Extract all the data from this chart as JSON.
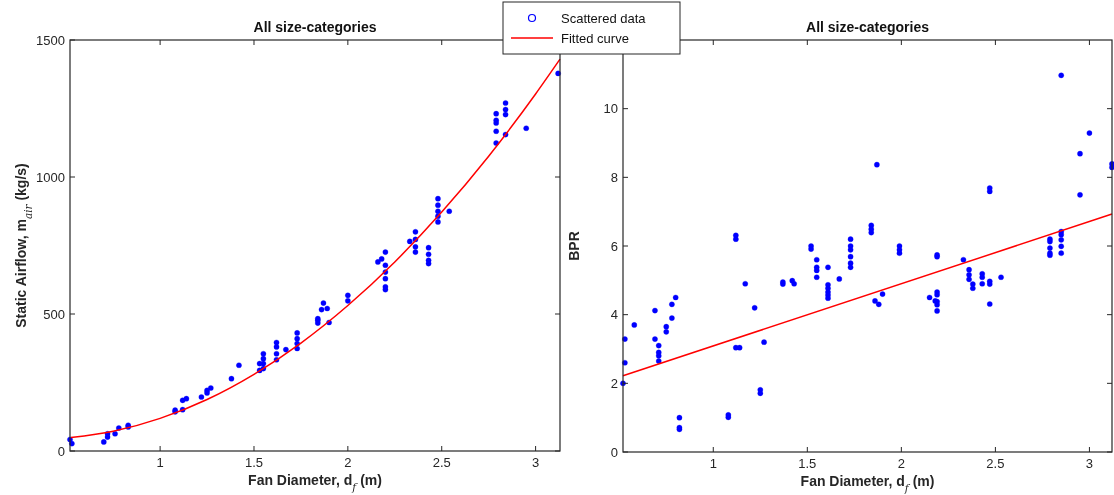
{
  "chart_data": [
    {
      "type": "scatter",
      "title": "All size-categories",
      "xlabel": "Fan Diameter, d$_{f}$ (m)",
      "ylabel": "Static Airflow, m$_{air}$ (kg/s)",
      "xlim": [
        0.52,
        3.13
      ],
      "xticks": [
        1,
        1.5,
        2,
        2.5,
        3
      ],
      "ylim": [
        0,
        1500
      ],
      "yticks": [
        0,
        500,
        1000,
        1500
      ],
      "grid": false,
      "legend": "top right",
      "marker": "circle",
      "series": [
        {
          "name": "Scattered data",
          "color": "#0000ff",
          "x": [
            0.52,
            0.53,
            0.7,
            0.72,
            0.72,
            0.76,
            0.78,
            0.83,
            0.83,
            1.08,
            1.08,
            1.12,
            1.12,
            1.14,
            1.22,
            1.25,
            1.25,
            1.27,
            1.38,
            1.42,
            1.53,
            1.53,
            1.55,
            1.55,
            1.55,
            1.55,
            1.62,
            1.62,
            1.62,
            1.62,
            1.67,
            1.73,
            1.73,
            1.73,
            1.73,
            1.84,
            1.84,
            1.84,
            1.86,
            1.87,
            1.89,
            1.9,
            2.0,
            2.0,
            2.16,
            2.18,
            2.2,
            2.2,
            2.2,
            2.2,
            2.2,
            2.2,
            2.33,
            2.36,
            2.36,
            2.36,
            2.36,
            2.43,
            2.43,
            2.43,
            2.43,
            2.48,
            2.48,
            2.48,
            2.48,
            2.48,
            2.54,
            2.79,
            2.79,
            2.79,
            2.79,
            2.79,
            2.84,
            2.84,
            2.84,
            2.84,
            2.95,
            3.12
          ],
          "values": [
            42,
            27,
            33,
            51,
            63,
            63,
            84,
            94,
            88,
            149,
            143,
            151,
            185,
            191,
            197,
            221,
            212,
            230,
            264,
            313,
            294,
            319,
            301,
            319,
            337,
            355,
            333,
            355,
            380,
            396,
            370,
            374,
            392,
            410,
            431,
            477,
            467,
            483,
            516,
            540,
            520,
            469,
            568,
            548,
            690,
            701,
            726,
            678,
            653,
            629,
            599,
            589,
            765,
            800,
            772,
            745,
            726,
            742,
            718,
            696,
            684,
            921,
            897,
            875,
            857,
            836,
            875,
            1231,
            1207,
            1197,
            1167,
            1124,
            1270,
            1246,
            1228,
            1155,
            1178,
            1378
          ]
        },
        {
          "name": "Fitted curve",
          "type": "line",
          "color": "#ff0000",
          "marker": "none",
          "line_style": "solid",
          "x": [
            0.525,
            0.75,
            1.0,
            1.25,
            1.5,
            1.75,
            2.0,
            2.25,
            2.5,
            2.75,
            3.0,
            3.13
          ],
          "values": [
            49,
            72,
            119,
            188,
            280,
            394,
            531,
            690,
            872,
            1076,
            1303,
            1430
          ]
        }
      ]
    },
    {
      "type": "scatter",
      "title": "All size-categories",
      "xlabel": "Fan Diameter, d$_{f}$ (m)",
      "ylabel": "BPR",
      "xlim": [
        0.52,
        3.12
      ],
      "xticks": [
        1,
        1.5,
        2,
        2.5,
        3
      ],
      "ylim": [
        0,
        12
      ],
      "yticks": [
        0,
        2,
        4,
        6,
        8,
        10
      ],
      "grid": false,
      "legend": false,
      "marker": "circle",
      "series": [
        {
          "color": "#0000ff",
          "x": [
            0.52,
            0.53,
            0.53,
            0.58,
            0.69,
            0.69,
            0.71,
            0.71,
            0.71,
            0.71,
            0.75,
            0.75,
            0.78,
            0.78,
            0.8,
            0.82,
            0.82,
            0.82,
            1.08,
            1.08,
            1.12,
            1.12,
            1.12,
            1.14,
            1.17,
            1.22,
            1.25,
            1.25,
            1.27,
            1.37,
            1.37,
            1.42,
            1.43,
            1.52,
            1.52,
            1.55,
            1.55,
            1.55,
            1.55,
            1.61,
            1.61,
            1.61,
            1.61,
            1.61,
            1.61,
            1.67,
            1.73,
            1.73,
            1.73,
            1.73,
            1.73,
            1.73,
            1.84,
            1.84,
            1.84,
            1.87,
            1.86,
            1.88,
            1.9,
            1.99,
            1.99,
            1.99,
            2.15,
            2.18,
            2.19,
            2.19,
            2.19,
            2.19,
            2.19,
            2.19,
            2.19,
            2.33,
            2.36,
            2.36,
            2.36,
            2.38,
            2.38,
            2.43,
            2.43,
            2.43,
            2.47,
            2.47,
            2.47,
            2.47,
            2.47,
            2.53,
            2.79,
            2.79,
            2.79,
            2.79,
            2.79,
            2.85,
            2.85,
            2.85,
            2.85,
            2.85,
            2.85,
            2.95,
            2.95,
            3.0,
            3.12,
            3.12
          ],
          "values": [
            2.0,
            2.6,
            3.29,
            3.7,
            4.12,
            3.29,
            3.1,
            2.9,
            2.8,
            2.65,
            3.65,
            3.5,
            3.9,
            4.3,
            4.5,
            1.0,
            0.71,
            0.66,
            1.08,
            1.01,
            6.31,
            6.2,
            3.04,
            3.04,
            4.9,
            4.2,
            1.81,
            1.71,
            3.2,
            4.95,
            4.89,
            4.99,
            4.9,
            6.0,
            5.91,
            5.6,
            5.38,
            5.29,
            5.09,
            5.38,
            4.87,
            4.77,
            4.66,
            4.57,
            4.48,
            5.04,
            6.2,
            6.0,
            5.89,
            5.69,
            5.5,
            5.38,
            6.6,
            6.49,
            6.39,
            8.37,
            4.4,
            4.3,
            4.6,
            6.0,
            5.89,
            5.79,
            4.5,
            4.4,
            5.74,
            5.69,
            4.66,
            4.58,
            4.38,
            4.29,
            4.11,
            5.6,
            5.31,
            5.16,
            5.03,
            4.89,
            4.77,
            5.19,
            5.09,
            4.9,
            7.69,
            7.59,
            4.97,
            4.89,
            4.31,
            5.09,
            6.2,
            6.13,
            5.94,
            5.79,
            5.73,
            10.97,
            6.42,
            6.33,
            6.18,
            5.99,
            5.79,
            8.69,
            7.49,
            9.29,
            8.39,
            8.29
          ]
        },
        {
          "type": "line",
          "color": "#ff0000",
          "marker": "none",
          "line_style": "solid",
          "x": [
            0.52,
            3.12
          ],
          "values": [
            2.22,
            6.93
          ]
        }
      ]
    }
  ]
}
